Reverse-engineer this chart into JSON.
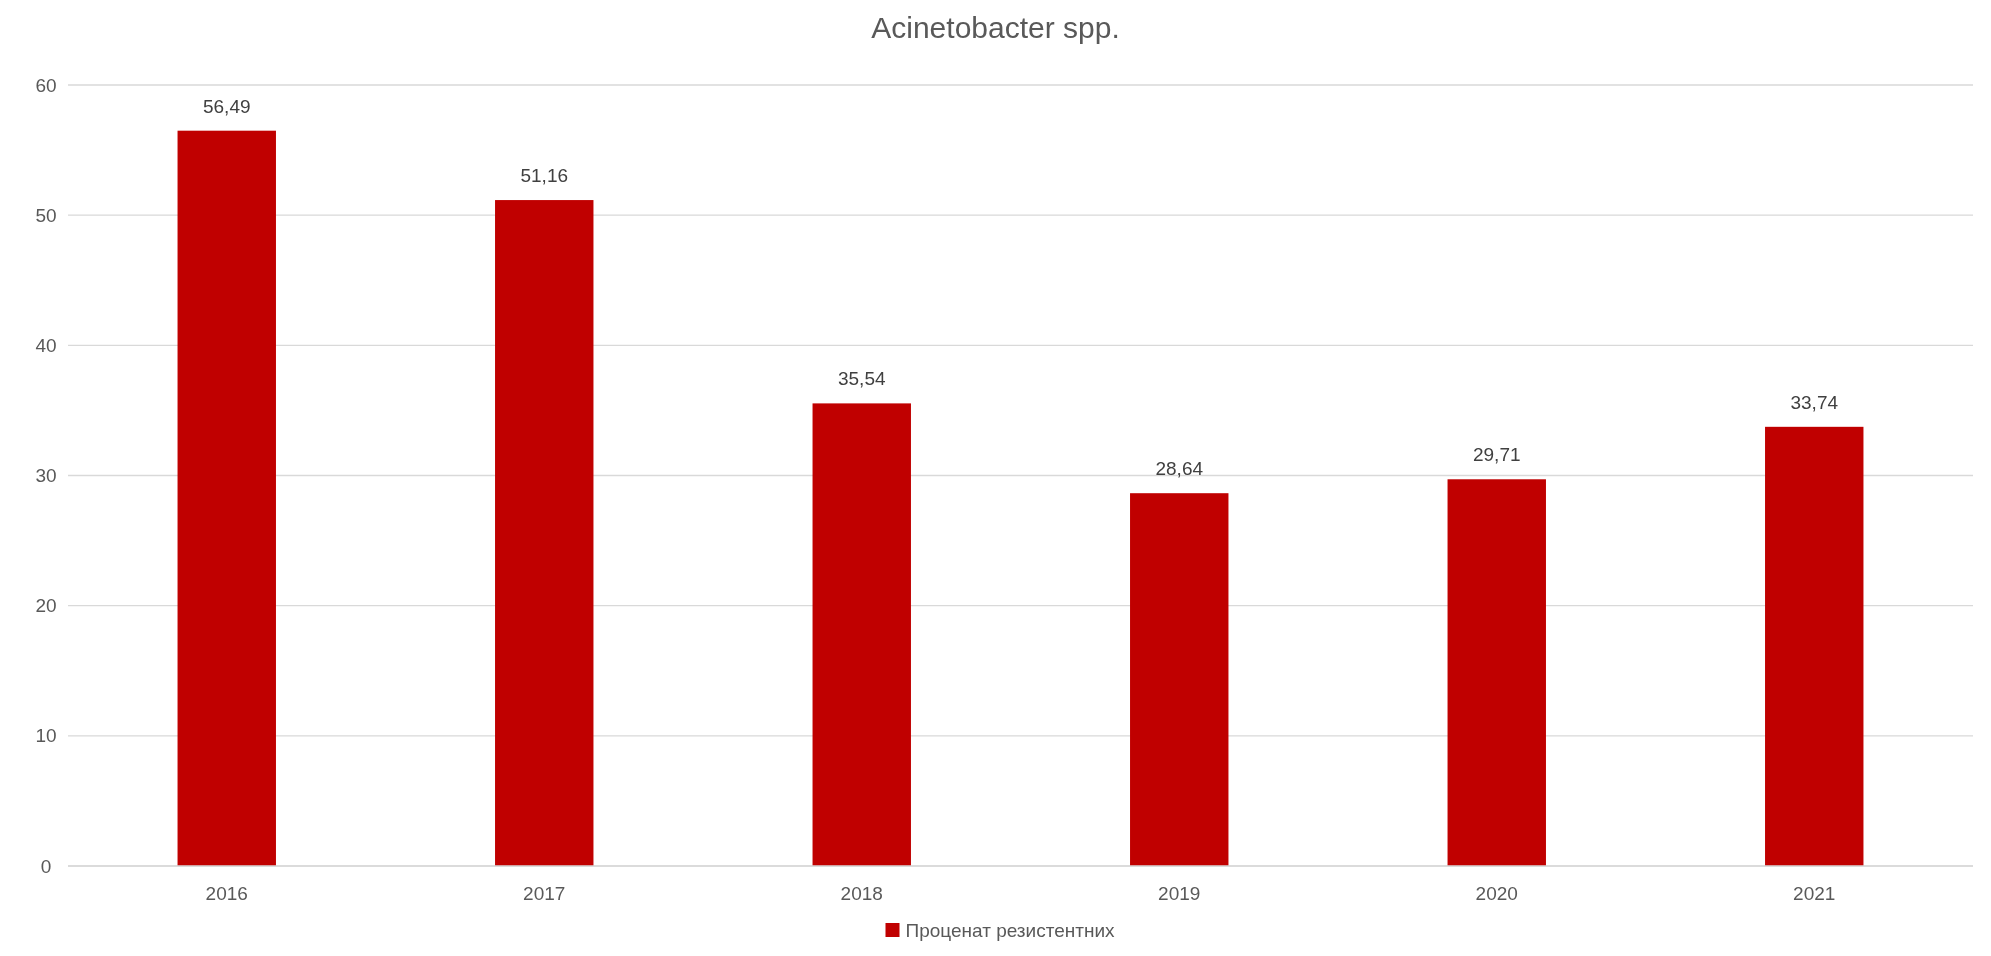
{
  "chart_data": {
    "type": "bar",
    "title": "Acinetobacter spp.",
    "categories": [
      "2016",
      "2017",
      "2018",
      "2019",
      "2020",
      "2021"
    ],
    "series": [
      {
        "name": "Проценат резистентних",
        "color": "#c00000",
        "values": [
          56.49,
          51.16,
          35.54,
          28.64,
          29.71,
          33.74
        ],
        "value_labels": [
          "56,49",
          "51,16",
          "35,54",
          "28,64",
          "29,71",
          "33,74"
        ]
      }
    ],
    "ylim": [
      0,
      60
    ],
    "yticks": [
      0,
      10,
      20,
      30,
      40,
      50,
      60
    ],
    "grid": "y",
    "legend": "bottom"
  }
}
